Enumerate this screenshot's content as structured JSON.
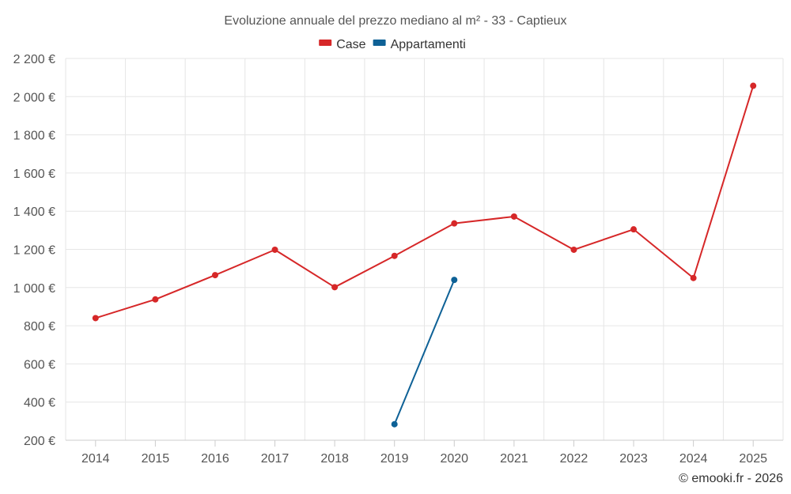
{
  "chart_data": {
    "type": "line",
    "title": "Evoluzione annuale del prezzo mediano al m² - 33 - Captieux",
    "xlabel": "",
    "ylabel": "",
    "categories": [
      "2014",
      "2015",
      "2016",
      "2017",
      "2018",
      "2019",
      "2020",
      "2021",
      "2022",
      "2023",
      "2024",
      "2025"
    ],
    "series": [
      {
        "name": "Case",
        "color": "#d62728",
        "values": [
          840,
          938,
          1065,
          1198,
          1002,
          1166,
          1336,
          1372,
          1198,
          1305,
          1050,
          2057
        ]
      },
      {
        "name": "Appartamenti",
        "color": "#0e6196",
        "values": [
          null,
          null,
          null,
          null,
          null,
          284,
          1040,
          null,
          null,
          null,
          null,
          null
        ]
      }
    ],
    "ylim": [
      200,
      2200
    ],
    "yticks": [
      200,
      400,
      600,
      800,
      1000,
      1200,
      1400,
      1600,
      1800,
      2000,
      2200
    ],
    "ytick_labels": [
      "200 €",
      "400 €",
      "600 €",
      "800 €",
      "1 000 €",
      "1 200 €",
      "1 400 €",
      "1 600 €",
      "1 800 €",
      "2 000 €",
      "2 200 €"
    ],
    "grid": true,
    "legend_position": "top-center"
  },
  "credit": "© emooki.fr - 2026"
}
